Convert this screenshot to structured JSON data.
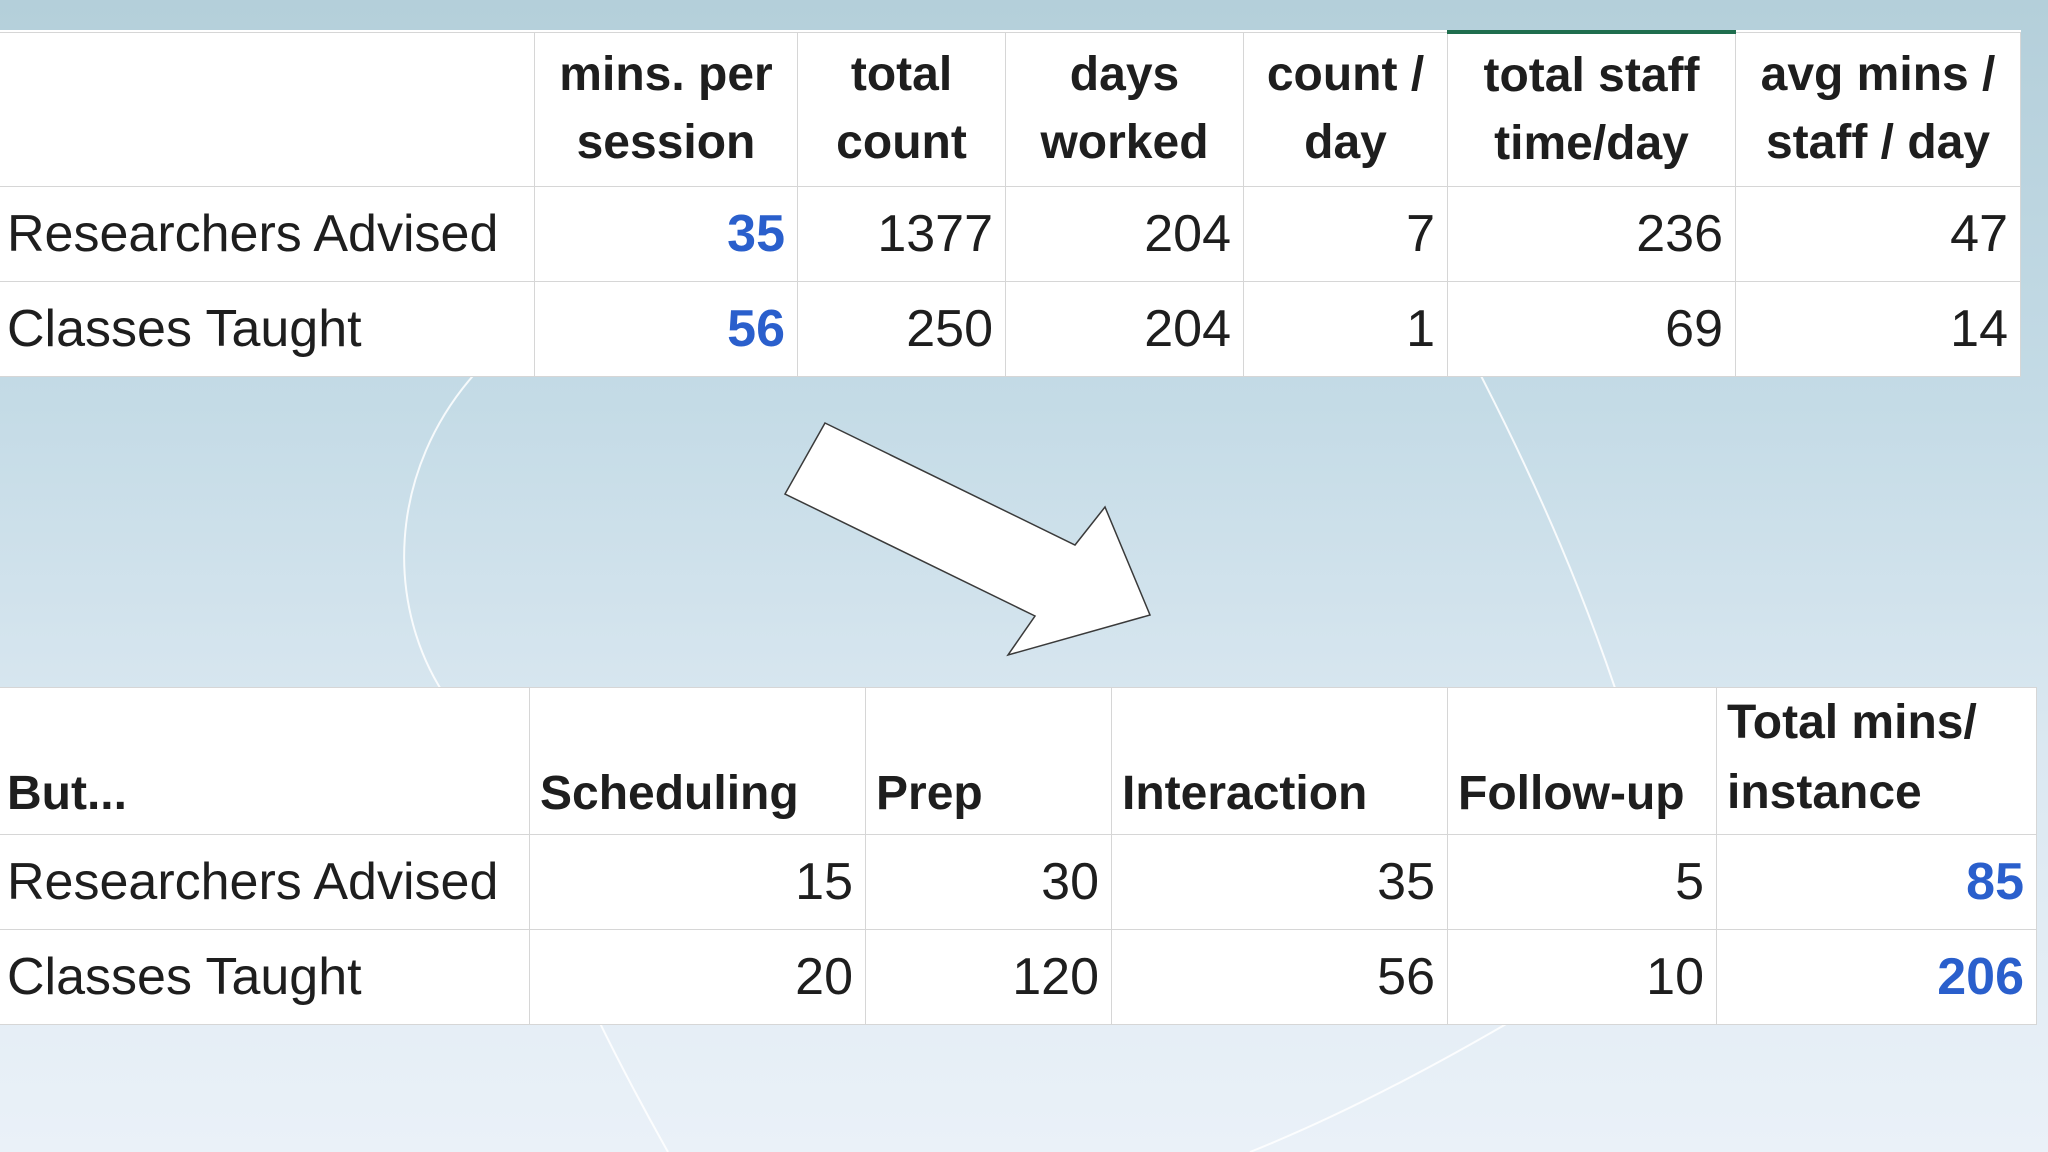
{
  "top_table": {
    "headers": {
      "label": "",
      "mins_per_session": [
        "mins. per",
        "session"
      ],
      "total_count": [
        "total",
        "count"
      ],
      "days_worked": [
        "days",
        "worked"
      ],
      "count_per_day": [
        "count /",
        "day"
      ],
      "total_staff_time": [
        "total staff",
        "time/day"
      ],
      "avg_mins": [
        "avg mins /",
        "staff / day"
      ]
    },
    "rows": [
      {
        "label": "Researchers Advised",
        "mins_per_session": "35",
        "total_count": "1377",
        "days_worked": "204",
        "count_per_day": "7",
        "total_staff_time": "236",
        "avg_mins": "47"
      },
      {
        "label": "Classes Taught",
        "mins_per_session": "56",
        "total_count": "250",
        "days_worked": "204",
        "count_per_day": "1",
        "total_staff_time": "69",
        "avg_mins": "14"
      }
    ]
  },
  "bottom_table": {
    "headers": {
      "label": "But...",
      "scheduling": "Scheduling",
      "prep": "Prep",
      "interaction": "Interaction",
      "follow_up": "Follow-up",
      "total": [
        "Total mins/",
        "instance"
      ]
    },
    "rows": [
      {
        "label": "Researchers Advised",
        "scheduling": "15",
        "prep": "30",
        "interaction": "35",
        "follow_up": "5",
        "total": "85"
      },
      {
        "label": "Classes Taught",
        "scheduling": "20",
        "prep": "120",
        "interaction": "56",
        "follow_up": "10",
        "total": "206"
      }
    ]
  },
  "icons": {
    "arrow": "down-right-arrow-icon"
  },
  "colors": {
    "highlight_value": "#2a5fcc",
    "active_cell_accent": "#1f6e4e",
    "background_top": "#b4cfda",
    "background_bottom": "#eaf1f8"
  }
}
